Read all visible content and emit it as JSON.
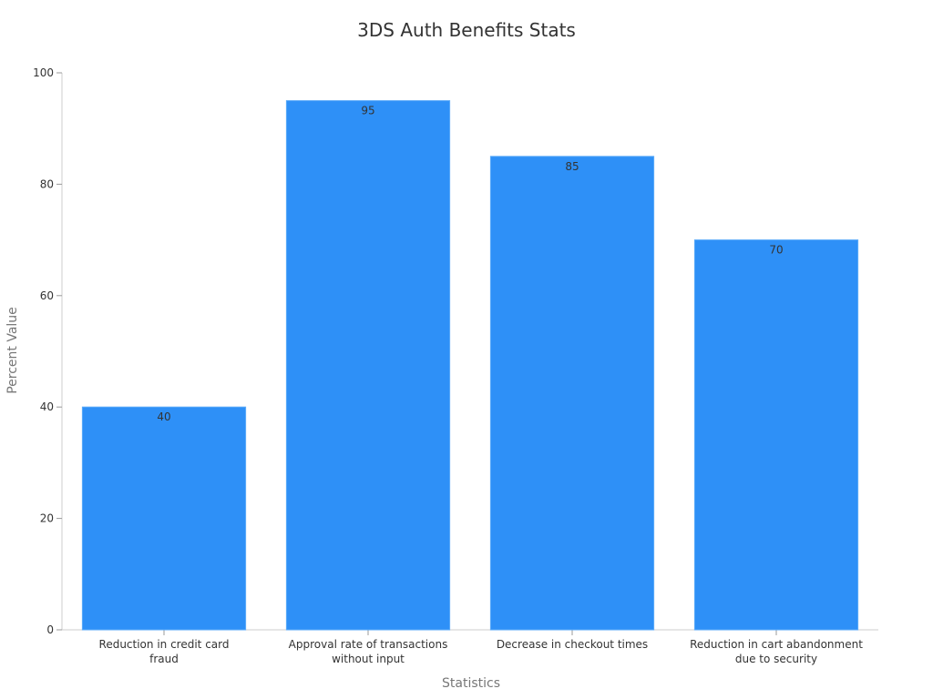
{
  "chart_data": {
    "type": "bar",
    "title": "3DS Auth Benefits Stats",
    "xlabel": "Statistics",
    "ylabel": "Percent Value",
    "categories": [
      "Reduction in credit card fraud",
      "Approval rate of transactions without input",
      "Decrease in checkout times",
      "Reduction in cart abandonment due to security"
    ],
    "category_label_lines": [
      [
        "Reduction in credit card",
        "fraud"
      ],
      [
        "Approval rate of transactions",
        "without input"
      ],
      [
        "Decrease in checkout times"
      ],
      [
        "Reduction in cart abandonment",
        "due to security"
      ]
    ],
    "values": [
      40,
      95,
      85,
      70
    ],
    "ylim": [
      0,
      100
    ],
    "yticks": [
      0,
      20,
      40,
      60,
      80,
      100
    ],
    "grid": false,
    "legend": "none",
    "colors": {
      "bar": "#2e90f7",
      "bar_edge": "#5aaaf9",
      "axis": "#cccccc",
      "text": "#333333",
      "axis_title": "#777777"
    }
  }
}
